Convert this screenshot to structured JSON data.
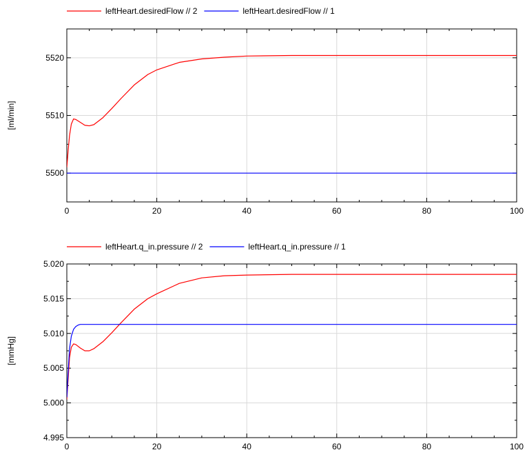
{
  "chart_data": [
    {
      "type": "line",
      "ylabel": "[ml/min]",
      "xlabel": "",
      "xlim": [
        0,
        100
      ],
      "ylim": [
        5495,
        5525
      ],
      "x_ticks": [
        "0",
        "20",
        "40",
        "60",
        "80",
        "100"
      ],
      "y_ticks": [
        "5500",
        "5510",
        "5520"
      ],
      "y_tick_values": [
        5500,
        5510,
        5520
      ],
      "grid": true,
      "legend_position": "top",
      "series": [
        {
          "name": "leftHeart.desiredFlow // 2",
          "color": "#ff0000",
          "x": [
            0,
            0.3,
            0.6,
            1,
            1.5,
            2,
            3,
            4,
            5,
            6,
            8,
            10,
            12,
            15,
            18,
            20,
            25,
            30,
            35,
            40,
            50,
            60,
            70,
            80,
            90,
            100
          ],
          "values": [
            5501,
            5504,
            5506.5,
            5508.5,
            5509.4,
            5509.3,
            5508.8,
            5508.3,
            5508.2,
            5508.4,
            5509.6,
            5511.2,
            5512.9,
            5515.3,
            5517.1,
            5517.9,
            5519.2,
            5519.8,
            5520.1,
            5520.3,
            5520.4,
            5520.4,
            5520.4,
            5520.4,
            5520.4,
            5520.4
          ]
        },
        {
          "name": "leftHeart.desiredFlow // 1",
          "color": "#0000ff",
          "x": [
            0,
            100
          ],
          "values": [
            5500,
            5500
          ]
        }
      ]
    },
    {
      "type": "line",
      "ylabel": "[mmHg]",
      "xlabel": "",
      "xlim": [
        0,
        100
      ],
      "ylim": [
        4.995,
        5.02
      ],
      "x_ticks": [
        "0",
        "20",
        "40",
        "60",
        "80",
        "100"
      ],
      "y_ticks": [
        "4.995",
        "5.000",
        "5.005",
        "5.010",
        "5.015",
        "5.020"
      ],
      "y_tick_values": [
        4.995,
        5.0,
        5.005,
        5.01,
        5.015,
        5.02
      ],
      "grid": true,
      "legend_position": "top",
      "series": [
        {
          "name": "leftHeart.q_in.pressure // 2",
          "color": "#ff0000",
          "x": [
            0,
            0.3,
            0.6,
            1,
            1.5,
            2,
            3,
            4,
            5,
            6,
            8,
            10,
            12,
            15,
            18,
            20,
            25,
            30,
            35,
            40,
            50,
            60,
            70,
            80,
            90,
            100
          ],
          "values": [
            5.0005,
            5.0035,
            5.0065,
            5.008,
            5.0085,
            5.0084,
            5.0079,
            5.0075,
            5.0075,
            5.0078,
            5.0088,
            5.0101,
            5.0115,
            5.0135,
            5.015,
            5.0157,
            5.0172,
            5.018,
            5.0183,
            5.0184,
            5.0185,
            5.0185,
            5.0185,
            5.0185,
            5.0185,
            5.0185
          ]
        },
        {
          "name": "leftHeart.q_in.pressure // 1",
          "color": "#0000ff",
          "x": [
            0,
            0.3,
            0.6,
            1,
            1.5,
            2,
            2.5,
            3,
            4,
            5,
            10,
            100
          ],
          "values": [
            5.0008,
            5.0045,
            5.0078,
            5.0096,
            5.0106,
            5.011,
            5.0112,
            5.0113,
            5.0113,
            5.0113,
            5.0113,
            5.0113
          ]
        }
      ]
    }
  ]
}
